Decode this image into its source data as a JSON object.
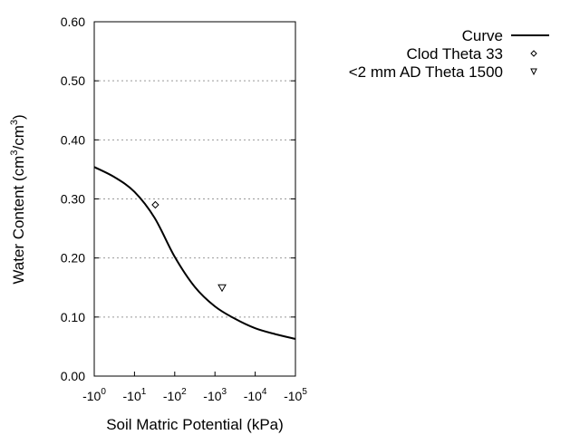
{
  "chart_data": {
    "type": "line",
    "xlabel": "Soil Matric Potential (kPa)",
    "ylabel": "Water Content (cm³/cm³)",
    "ylabel_parts": [
      "Water Content (cm",
      "3",
      "/cm",
      "3",
      ")"
    ],
    "x_scale": "log (negative)",
    "xlim": [
      1,
      100000
    ],
    "ylim": [
      0,
      0.6
    ],
    "x_ticks": [
      {
        "base": "-10",
        "exp": "0",
        "value": 1
      },
      {
        "base": "-10",
        "exp": "1",
        "value": 10
      },
      {
        "base": "-10",
        "exp": "2",
        "value": 100
      },
      {
        "base": "-10",
        "exp": "3",
        "value": 1000
      },
      {
        "base": "-10",
        "exp": "4",
        "value": 10000
      },
      {
        "base": "-10",
        "exp": "5",
        "value": 100000
      }
    ],
    "y_ticks": [
      "0.00",
      "0.10",
      "0.20",
      "0.30",
      "0.40",
      "0.50",
      "0.60"
    ],
    "grid": "horizontal dotted",
    "legend_position": "right",
    "series": [
      {
        "name": "Curve",
        "kind": "line",
        "color": "#000000",
        "x": [
          1,
          3.16,
          10,
          31.6,
          100,
          316,
          1000,
          3162,
          10000,
          31623,
          100000
        ],
        "y": [
          0.354,
          0.337,
          0.312,
          0.268,
          0.202,
          0.151,
          0.118,
          0.097,
          0.081,
          0.071,
          0.063
        ]
      },
      {
        "name": "Clod Theta 33",
        "kind": "marker",
        "marker": "diamond",
        "x": [
          33
        ],
        "y": [
          0.29
        ]
      },
      {
        "name": "<2 mm AD Theta 1500",
        "kind": "marker",
        "marker": "triangle-down",
        "x": [
          1500
        ],
        "y": [
          0.15
        ]
      }
    ]
  }
}
